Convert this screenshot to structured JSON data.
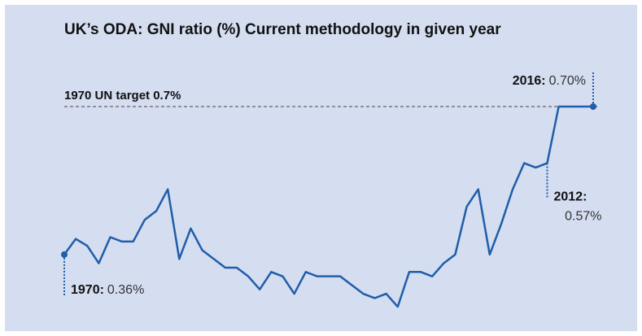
{
  "chart_data": {
    "type": "line",
    "title": "UK’s ODA: GNI ratio (%) Current methodology in given year",
    "x": [
      1970,
      1971,
      1972,
      1973,
      1974,
      1975,
      1976,
      1977,
      1978,
      1979,
      1980,
      1981,
      1982,
      1983,
      1984,
      1985,
      1986,
      1987,
      1988,
      1989,
      1990,
      1991,
      1992,
      1993,
      1994,
      1995,
      1996,
      1997,
      1998,
      1999,
      2000,
      2001,
      2002,
      2003,
      2004,
      2005,
      2006,
      2007,
      2008,
      2009,
      2010,
      2011,
      2012,
      2013,
      2014,
      2015,
      2016
    ],
    "series": [
      {
        "color": "#1f5ea8",
        "values": [
          0.36,
          0.396,
          0.38,
          0.34,
          0.4,
          0.39,
          0.39,
          0.44,
          0.46,
          0.51,
          0.35,
          0.42,
          0.37,
          0.35,
          0.33,
          0.33,
          0.31,
          0.28,
          0.32,
          0.31,
          0.27,
          0.32,
          0.31,
          0.31,
          0.31,
          0.29,
          0.27,
          0.26,
          0.27,
          0.24,
          0.32,
          0.32,
          0.31,
          0.34,
          0.36,
          0.47,
          0.51,
          0.36,
          0.43,
          0.51,
          0.57,
          0.56,
          0.57,
          0.7,
          0.7,
          0.7,
          0.7
        ]
      }
    ],
    "xlim": [
      1970,
      2016
    ],
    "ylim": [
      0.2,
      0.8
    ],
    "reference_line": {
      "value": 0.7,
      "label": "1970 UN target 0.7%"
    },
    "annotations": [
      {
        "x": 1970,
        "label": "1970:",
        "value_label": "0.36%"
      },
      {
        "x": 2012,
        "label": "2012:",
        "value_label": "0.57%"
      },
      {
        "x": 2016,
        "label": "2016:",
        "value_label": "0.70%"
      }
    ]
  }
}
